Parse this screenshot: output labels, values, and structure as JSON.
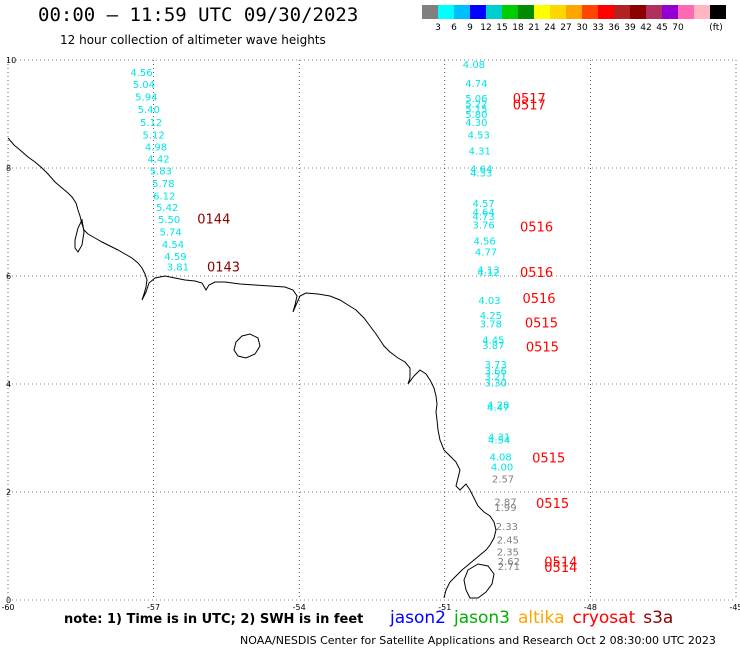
{
  "header": {
    "title": "00:00 – 11:59 UTC 09/30/2023",
    "subtitle": "12 hour collection of altimeter wave heights"
  },
  "colorbar": {
    "colors": [
      "#808080",
      "#00ffff",
      "#00bfff",
      "#0000ff",
      "#00cdcd",
      "#00cd00",
      "#008b00",
      "#ffff00",
      "#ffd700",
      "#ffa500",
      "#ff4500",
      "#ff0000",
      "#b22222",
      "#8b0000",
      "#b03060",
      "#9400d3",
      "#ff69b4",
      "#ffb6c1",
      "#000000"
    ],
    "labels": [
      "3",
      "6",
      "9",
      "12",
      "15",
      "18",
      "21",
      "24",
      "27",
      "30",
      "33",
      "36",
      "39",
      "42",
      "45",
      "70",
      "(ft)"
    ]
  },
  "axes": {
    "x_ticks": [
      "-60",
      "-57",
      "-54",
      "-51",
      "-48",
      "-45"
    ],
    "y_ticks": [
      "10",
      "8",
      "6",
      "4",
      "2",
      "0"
    ],
    "lon_range": [
      -60,
      -45
    ],
    "lat_range": [
      0,
      10
    ]
  },
  "colors": {
    "cyan": "#00e5e5",
    "gray": "#808080",
    "red": "#ff0000",
    "darkred": "#8b0000"
  },
  "tracks": [
    {
      "name": "track-west",
      "points": [
        {
          "lat": 9.7,
          "lon": -57.25,
          "swh": "4.56",
          "c": "cyan"
        },
        {
          "lat": 9.48,
          "lon": -57.2,
          "swh": "5.04",
          "c": "cyan"
        },
        {
          "lat": 9.25,
          "lon": -57.15,
          "swh": "5.94",
          "c": "cyan"
        },
        {
          "lat": 9.02,
          "lon": -57.1,
          "swh": "5.40",
          "c": "cyan"
        },
        {
          "lat": 8.78,
          "lon": -57.05,
          "swh": "5.12",
          "c": "cyan"
        },
        {
          "lat": 8.55,
          "lon": -57.0,
          "swh": "5.12",
          "c": "cyan"
        },
        {
          "lat": 8.32,
          "lon": -56.95,
          "swh": "4.98",
          "c": "cyan"
        },
        {
          "lat": 8.1,
          "lon": -56.9,
          "swh": "4.42",
          "c": "cyan"
        },
        {
          "lat": 7.88,
          "lon": -56.85,
          "swh": "5.83",
          "c": "cyan"
        },
        {
          "lat": 7.65,
          "lon": -56.8,
          "swh": "5.78",
          "c": "cyan"
        },
        {
          "lat": 7.42,
          "lon": -56.78,
          "swh": "6.12",
          "c": "cyan"
        },
        {
          "lat": 7.2,
          "lon": -56.72,
          "swh": "5.42",
          "c": "cyan"
        },
        {
          "lat": 6.98,
          "lon": -56.68,
          "swh": "5.50",
          "c": "cyan"
        },
        {
          "lat": 6.75,
          "lon": -56.65,
          "swh": "5.74",
          "c": "cyan"
        },
        {
          "lat": 6.52,
          "lon": -56.6,
          "swh": "4.54",
          "c": "cyan"
        },
        {
          "lat": 6.3,
          "lon": -56.55,
          "swh": "4.59",
          "c": "cyan"
        },
        {
          "lat": 6.1,
          "lon": -56.5,
          "swh": "3.81",
          "c": "cyan"
        }
      ],
      "times": [
        {
          "lat": 6.97,
          "lon": -56.1,
          "label": "0144",
          "c": "darkred"
        },
        {
          "lat": 6.08,
          "lon": -55.9,
          "label": "0143",
          "c": "darkred"
        }
      ]
    },
    {
      "name": "track-east",
      "points": [
        {
          "lat": 9.85,
          "lon": -50.4,
          "swh": "4.08",
          "c": "cyan"
        },
        {
          "lat": 9.5,
          "lon": -50.35,
          "swh": "4.74",
          "c": "cyan"
        },
        {
          "lat": 9.22,
          "lon": -50.35,
          "swh": "5.06",
          "c": "cyan"
        },
        {
          "lat": 9.12,
          "lon": -50.35,
          "swh": "5.22",
          "c": "cyan"
        },
        {
          "lat": 9.03,
          "lon": -50.35,
          "swh": "5.15",
          "c": "cyan"
        },
        {
          "lat": 8.93,
          "lon": -50.35,
          "swh": "5.80",
          "c": "cyan"
        },
        {
          "lat": 8.78,
          "lon": -50.35,
          "swh": "4.30",
          "c": "cyan"
        },
        {
          "lat": 8.55,
          "lon": -50.3,
          "swh": "4.53",
          "c": "cyan"
        },
        {
          "lat": 8.25,
          "lon": -50.28,
          "swh": "4.31",
          "c": "cyan"
        },
        {
          "lat": 7.92,
          "lon": -50.25,
          "swh": "4.64",
          "c": "cyan"
        },
        {
          "lat": 7.84,
          "lon": -50.25,
          "swh": "4.33",
          "c": "cyan"
        },
        {
          "lat": 7.28,
          "lon": -50.2,
          "swh": "4.57",
          "c": "cyan"
        },
        {
          "lat": 7.12,
          "lon": -50.2,
          "swh": "4.64",
          "c": "cyan"
        },
        {
          "lat": 7.04,
          "lon": -50.2,
          "swh": "4.73",
          "c": "cyan"
        },
        {
          "lat": 6.88,
          "lon": -50.2,
          "swh": "3.76",
          "c": "cyan"
        },
        {
          "lat": 6.58,
          "lon": -50.18,
          "swh": "4.56",
          "c": "cyan"
        },
        {
          "lat": 6.38,
          "lon": -50.15,
          "swh": "4.77",
          "c": "cyan"
        },
        {
          "lat": 6.05,
          "lon": -50.1,
          "swh": "4.13",
          "c": "cyan"
        },
        {
          "lat": 6.0,
          "lon": -50.1,
          "swh": "4.12",
          "c": "cyan"
        },
        {
          "lat": 5.48,
          "lon": -50.08,
          "swh": "4.03",
          "c": "cyan"
        },
        {
          "lat": 5.2,
          "lon": -50.05,
          "swh": "4.25",
          "c": "cyan"
        },
        {
          "lat": 5.05,
          "lon": -50.05,
          "swh": "3.78",
          "c": "cyan"
        },
        {
          "lat": 4.75,
          "lon": -50.0,
          "swh": "4.45",
          "c": "cyan"
        },
        {
          "lat": 4.65,
          "lon": -50.0,
          "swh": "3.87",
          "c": "cyan"
        },
        {
          "lat": 4.3,
          "lon": -49.95,
          "swh": "3.73",
          "c": "cyan"
        },
        {
          "lat": 4.18,
          "lon": -49.95,
          "swh": "3.66",
          "c": "cyan"
        },
        {
          "lat": 4.07,
          "lon": -49.95,
          "swh": "3.21",
          "c": "cyan"
        },
        {
          "lat": 3.95,
          "lon": -49.95,
          "swh": "3.30",
          "c": "cyan"
        },
        {
          "lat": 3.55,
          "lon": -49.9,
          "swh": "4.28",
          "c": "cyan"
        },
        {
          "lat": 3.5,
          "lon": -49.9,
          "swh": "4.47",
          "c": "cyan"
        },
        {
          "lat": 2.95,
          "lon": -49.88,
          "swh": "4.31",
          "c": "cyan"
        },
        {
          "lat": 2.9,
          "lon": -49.88,
          "swh": "4.54",
          "c": "cyan"
        },
        {
          "lat": 2.58,
          "lon": -49.85,
          "swh": "4.08",
          "c": "cyan"
        },
        {
          "lat": 2.4,
          "lon": -49.82,
          "swh": "4.00",
          "c": "cyan"
        },
        {
          "lat": 2.18,
          "lon": -49.8,
          "swh": "2.57",
          "c": "gray"
        },
        {
          "lat": 1.75,
          "lon": -49.75,
          "swh": "2.87",
          "c": "gray"
        },
        {
          "lat": 1.65,
          "lon": -49.75,
          "swh": "1.99",
          "c": "gray"
        },
        {
          "lat": 1.3,
          "lon": -49.72,
          "swh": "2.33",
          "c": "gray"
        },
        {
          "lat": 1.05,
          "lon": -49.7,
          "swh": "2.45",
          "c": "gray"
        },
        {
          "lat": 0.82,
          "lon": -49.7,
          "swh": "2.35",
          "c": "gray"
        },
        {
          "lat": 0.65,
          "lon": -49.68,
          "swh": "2.62",
          "c": "gray"
        },
        {
          "lat": 0.56,
          "lon": -49.68,
          "swh": "2.71",
          "c": "gray"
        }
      ],
      "times": [
        {
          "lat": 9.2,
          "lon": -49.6,
          "label": "0517",
          "c": "red"
        },
        {
          "lat": 9.08,
          "lon": -49.6,
          "label": "0517",
          "c": "red"
        },
        {
          "lat": 6.82,
          "lon": -49.45,
          "label": "0516",
          "c": "red"
        },
        {
          "lat": 5.98,
          "lon": -49.45,
          "label": "0516",
          "c": "red"
        },
        {
          "lat": 5.5,
          "lon": -49.4,
          "label": "0516",
          "c": "red"
        },
        {
          "lat": 5.05,
          "lon": -49.35,
          "label": "0515",
          "c": "red"
        },
        {
          "lat": 4.6,
          "lon": -49.33,
          "label": "0515",
          "c": "red"
        },
        {
          "lat": 2.55,
          "lon": -49.2,
          "label": "0515",
          "c": "red"
        },
        {
          "lat": 1.7,
          "lon": -49.12,
          "label": "0515",
          "c": "red"
        },
        {
          "lat": 0.62,
          "lon": -48.95,
          "label": "0514",
          "c": "red"
        },
        {
          "lat": 0.52,
          "lon": -48.95,
          "label": "0514",
          "c": "red"
        }
      ]
    }
  ],
  "footer": {
    "note": "note:  1) Time is in UTC;  2) SWH is in feet",
    "legend": [
      {
        "name": "jason2",
        "color": "#0000ff"
      },
      {
        "name": "jason3",
        "color": "#00b000"
      },
      {
        "name": "altika",
        "color": "#ffa500"
      },
      {
        "name": "cryosat",
        "color": "#ff0000"
      },
      {
        "name": "s3a",
        "color": "#8b0000"
      }
    ],
    "credit": "NOAA/NESDIS Center for Satellite Applications and Research     Oct  2 08:30:00 UTC 2023"
  }
}
